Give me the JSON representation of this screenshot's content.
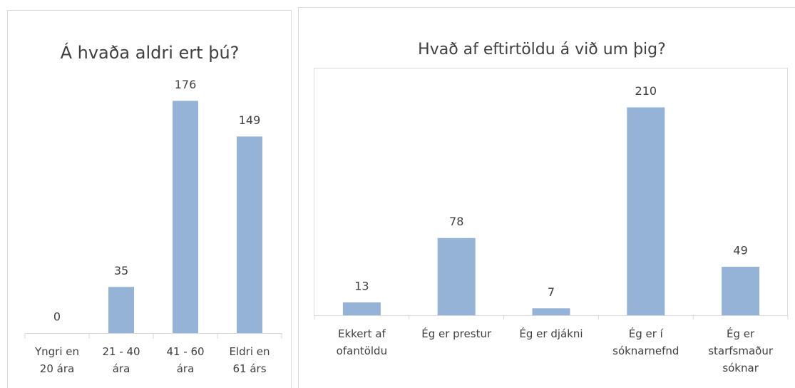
{
  "chart_data": [
    {
      "type": "bar",
      "title": "Á hvaða aldri ert þú?",
      "categories": [
        "Yngri en 20 ára",
        "21 - 40 ára",
        "41 - 60 ára",
        "Eldri en 61 árs"
      ],
      "values": [
        0,
        35,
        176,
        149
      ],
      "color": "#95b3d7",
      "ylim": [
        0,
        200
      ]
    },
    {
      "type": "bar",
      "title": "Hvað af eftirtöldu á við um þig?",
      "categories": [
        "Ekkert af ofantöldu",
        "Ég er prestur",
        "Ég er djákni",
        "Ég er í sóknarnefnd",
        "Ég er starfsmaður sóknar"
      ],
      "values": [
        13,
        78,
        7,
        210,
        49
      ],
      "color": "#95b3d7",
      "ylim": [
        0,
        250
      ]
    }
  ]
}
